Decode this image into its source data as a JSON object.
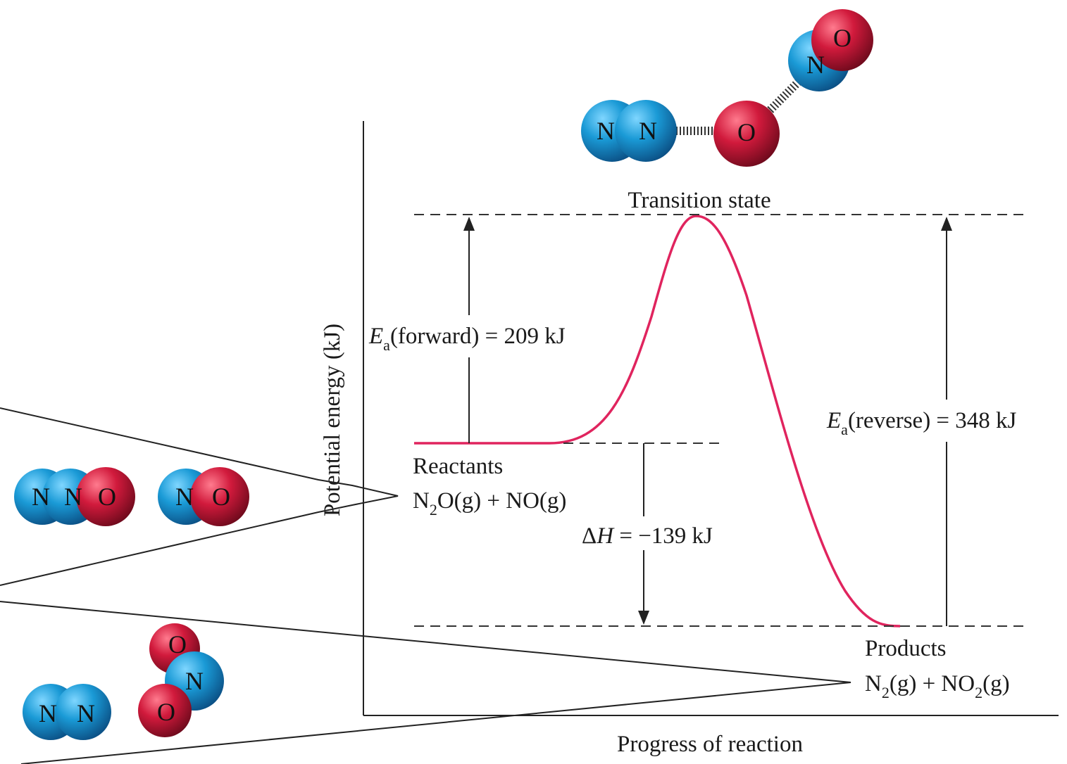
{
  "axes": {
    "y_label": "Potential energy (kJ)",
    "x_label": "Progress of reaction"
  },
  "transition_state": {
    "label": "Transition state"
  },
  "reactants": {
    "label": "Reactants",
    "formula": {
      "a": "N",
      "a_sub": "2",
      "b": "O(g) + NO(g)"
    }
  },
  "products": {
    "label": "Products",
    "formula": {
      "a": "N",
      "a_sub": "2",
      "b": "(g) + NO",
      "b_sub": "2",
      "c": "(g)"
    }
  },
  "energies": {
    "forward": {
      "sym": "E",
      "sub": "a",
      "text": "(forward) = 209 kJ",
      "value_kJ": 209
    },
    "reverse": {
      "sym": "E",
      "sub": "a",
      "text": "(reverse) = 348 kJ",
      "value_kJ": 348
    },
    "delta_h": {
      "sym": "Δ",
      "italic": "H",
      "text": " = −139 kJ",
      "value_kJ": -139
    }
  },
  "atoms": {
    "nitrogen": "N",
    "oxygen": "O"
  },
  "colors": {
    "curve": "#e0245e",
    "nitrogen": "#1a9ad6",
    "oxygen": "#d11a3c"
  }
}
